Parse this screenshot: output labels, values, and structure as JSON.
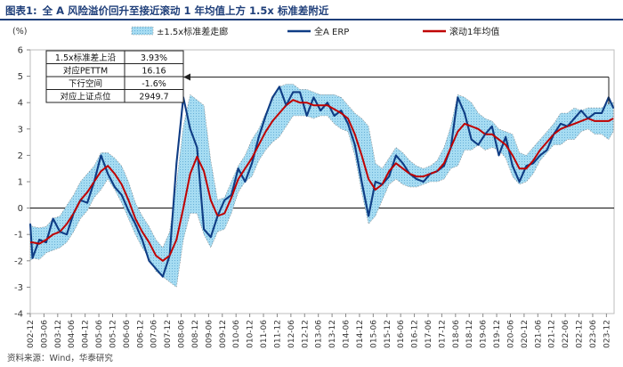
{
  "figure": {
    "label": "图表1:",
    "title": "全 A 风险溢价回升至接近滚动 1 年均值上方 1.5x 标准差附近",
    "source": "资料来源：Wind，华泰研究"
  },
  "chart_data": {
    "type": "line",
    "y_unit": "(%)",
    "ylim": [
      -4,
      6
    ],
    "yticks": [
      -4,
      -3,
      -2,
      -1,
      0,
      1,
      2,
      3,
      4,
      5,
      6
    ],
    "x_tick_labels": [
      "2002-12",
      "2003-06",
      "2003-12",
      "2004-06",
      "2004-12",
      "2005-06",
      "2005-12",
      "2006-06",
      "2006-12",
      "2007-06",
      "2007-12",
      "2008-06",
      "2008-12",
      "2009-06",
      "2009-12",
      "2010-06",
      "2010-12",
      "2011-06",
      "2011-12",
      "2012-06",
      "2012-12",
      "2013-06",
      "2013-12",
      "2014-06",
      "2014-12",
      "2015-06",
      "2015-12",
      "2016-06",
      "2016-12",
      "2017-06",
      "2017-12",
      "2018-06",
      "2018-12",
      "2019-06",
      "2019-12",
      "2020-06",
      "2020-12",
      "2021-06",
      "2021-12",
      "2022-06",
      "2022-12",
      "2023-06",
      "2023-12"
    ],
    "legend": [
      {
        "name": "±1.5x标准差走廊",
        "kind": "band",
        "color": "#9fd8ef"
      },
      {
        "name": "全A ERP",
        "kind": "line",
        "color": "#0f3d85"
      },
      {
        "name": "滚动1年均值",
        "kind": "line",
        "color": "#c00000"
      }
    ],
    "annotation_table": {
      "rows": [
        {
          "label": "1.5x标准差上沿",
          "value": "3.93%"
        },
        {
          "label": "对应PETTM",
          "value": "16.16"
        },
        {
          "label": "下行空间",
          "value": "-1.6%"
        },
        {
          "label": "对应上证点位",
          "value": "2949.7"
        }
      ],
      "arrow_target_y": 4.97
    },
    "x": [
      2002.92,
      2003.0,
      2003.25,
      2003.5,
      2003.75,
      2004.0,
      2004.25,
      2004.5,
      2004.75,
      2005.0,
      2005.25,
      2005.5,
      2005.75,
      2006.0,
      2006.25,
      2006.5,
      2006.75,
      2007.0,
      2007.25,
      2007.5,
      2007.75,
      2008.0,
      2008.25,
      2008.5,
      2008.75,
      2009.0,
      2009.25,
      2009.5,
      2009.75,
      2010.0,
      2010.25,
      2010.5,
      2010.75,
      2011.0,
      2011.25,
      2011.5,
      2011.75,
      2012.0,
      2012.25,
      2012.5,
      2012.75,
      2013.0,
      2013.25,
      2013.5,
      2013.75,
      2014.0,
      2014.25,
      2014.5,
      2014.75,
      2015.0,
      2015.25,
      2015.5,
      2015.75,
      2016.0,
      2016.25,
      2016.5,
      2016.75,
      2017.0,
      2017.25,
      2017.5,
      2017.75,
      2018.0,
      2018.25,
      2018.5,
      2018.75,
      2019.0,
      2019.25,
      2019.5,
      2019.75,
      2020.0,
      2020.25,
      2020.5,
      2020.75,
      2021.0,
      2021.25,
      2021.5,
      2021.75,
      2022.0,
      2022.25,
      2022.5,
      2022.75,
      2023.0,
      2023.25,
      2023.5,
      2023.75,
      2024.0,
      2024.17
    ],
    "series": [
      {
        "name": "全A ERP",
        "values": [
          -0.6,
          -1.9,
          -1.2,
          -1.3,
          -0.4,
          -0.9,
          -1.0,
          -0.2,
          0.3,
          0.2,
          1.0,
          2.0,
          1.3,
          0.8,
          0.5,
          -0.1,
          -0.6,
          -1.2,
          -2.0,
          -2.3,
          -2.6,
          -1.8,
          1.7,
          4.2,
          3.0,
          2.3,
          -0.8,
          -1.1,
          -0.3,
          0.3,
          0.5,
          1.5,
          1.0,
          1.7,
          2.7,
          3.5,
          4.2,
          4.6,
          3.9,
          4.4,
          4.4,
          3.5,
          4.2,
          3.7,
          4.0,
          3.5,
          3.7,
          3.2,
          2.4,
          1.0,
          -0.3,
          1.0,
          0.9,
          1.2,
          2.0,
          1.7,
          1.3,
          1.1,
          1.0,
          1.3,
          1.4,
          1.6,
          2.3,
          4.2,
          3.6,
          2.6,
          2.4,
          2.8,
          3.1,
          2.0,
          2.7,
          1.6,
          1.0,
          1.6,
          1.7,
          2.0,
          2.2,
          2.8,
          3.2,
          3.1,
          3.4,
          3.7,
          3.4,
          3.6,
          3.6,
          4.2,
          3.8
        ]
      },
      {
        "name": "滚动1年均值",
        "values": [
          -1.3,
          -1.3,
          -1.35,
          -1.2,
          -1.0,
          -0.9,
          -0.6,
          -0.2,
          0.3,
          0.6,
          1.0,
          1.4,
          1.6,
          1.3,
          0.9,
          0.3,
          -0.4,
          -0.9,
          -1.3,
          -1.8,
          -2.0,
          -1.8,
          -1.2,
          0.0,
          1.3,
          1.95,
          1.4,
          0.3,
          -0.3,
          -0.2,
          0.4,
          1.1,
          1.5,
          1.9,
          2.4,
          2.9,
          3.3,
          3.6,
          3.9,
          4.1,
          4.0,
          4.0,
          3.9,
          3.9,
          3.9,
          3.75,
          3.6,
          3.4,
          2.8,
          2.0,
          1.1,
          0.7,
          0.9,
          1.4,
          1.7,
          1.5,
          1.3,
          1.2,
          1.2,
          1.3,
          1.4,
          1.7,
          2.3,
          2.9,
          3.2,
          3.1,
          3.0,
          2.8,
          2.8,
          2.6,
          2.4,
          2.0,
          1.5,
          1.5,
          1.8,
          2.2,
          2.5,
          2.8,
          3.0,
          3.1,
          3.2,
          3.3,
          3.4,
          3.3,
          3.3,
          3.3,
          3.4
        ]
      },
      {
        "name": "±1.5x标准差走廊 上沿",
        "values": [
          -0.6,
          -0.7,
          -0.75,
          -0.7,
          -0.4,
          -0.3,
          0.1,
          0.5,
          1.0,
          1.3,
          1.6,
          2.1,
          2.1,
          1.9,
          1.6,
          1.0,
          0.2,
          -0.3,
          -0.7,
          -1.2,
          -1.5,
          -0.9,
          0.9,
          3.1,
          4.3,
          4.1,
          3.9,
          1.8,
          0.3,
          0.4,
          1.0,
          1.6,
          2.0,
          2.6,
          3.0,
          3.6,
          4.1,
          4.6,
          4.7,
          4.7,
          4.5,
          4.5,
          4.4,
          4.3,
          4.3,
          4.3,
          4.2,
          3.9,
          3.6,
          3.4,
          3.1,
          1.7,
          1.5,
          1.9,
          2.3,
          2.1,
          1.8,
          1.6,
          1.5,
          1.6,
          1.8,
          2.3,
          3.1,
          4.3,
          4.2,
          4.0,
          3.6,
          3.4,
          3.3,
          3.0,
          2.9,
          2.8,
          2.1,
          2.0,
          2.3,
          2.6,
          2.9,
          3.2,
          3.6,
          3.6,
          3.8,
          3.7,
          3.8,
          3.8,
          3.8,
          4.0,
          4.0
        ]
      },
      {
        "name": "±1.5x标准差走廊 下沿",
        "values": [
          -2.0,
          -1.9,
          -1.95,
          -1.7,
          -1.6,
          -1.5,
          -1.3,
          -0.9,
          -0.4,
          -0.1,
          0.4,
          0.7,
          1.1,
          0.7,
          0.2,
          -0.4,
          -1.0,
          -1.5,
          -1.9,
          -2.4,
          -2.6,
          -2.8,
          -3.0,
          -1.2,
          -0.2,
          -0.2,
          -1.0,
          -1.5,
          -0.9,
          -0.8,
          -0.2,
          0.6,
          1.0,
          1.2,
          1.8,
          2.2,
          2.5,
          2.7,
          3.1,
          3.5,
          3.5,
          3.5,
          3.4,
          3.5,
          3.5,
          3.2,
          3.0,
          2.9,
          2.0,
          0.6,
          -0.6,
          -0.3,
          0.3,
          0.9,
          1.1,
          0.9,
          0.8,
          0.8,
          0.9,
          1.0,
          1.0,
          1.1,
          1.5,
          1.6,
          2.2,
          2.2,
          2.4,
          2.2,
          2.3,
          2.2,
          1.9,
          1.2,
          0.9,
          1.0,
          1.3,
          1.8,
          2.1,
          2.4,
          2.4,
          2.6,
          2.6,
          2.9,
          3.0,
          2.8,
          2.8,
          2.6,
          2.9
        ]
      }
    ]
  }
}
